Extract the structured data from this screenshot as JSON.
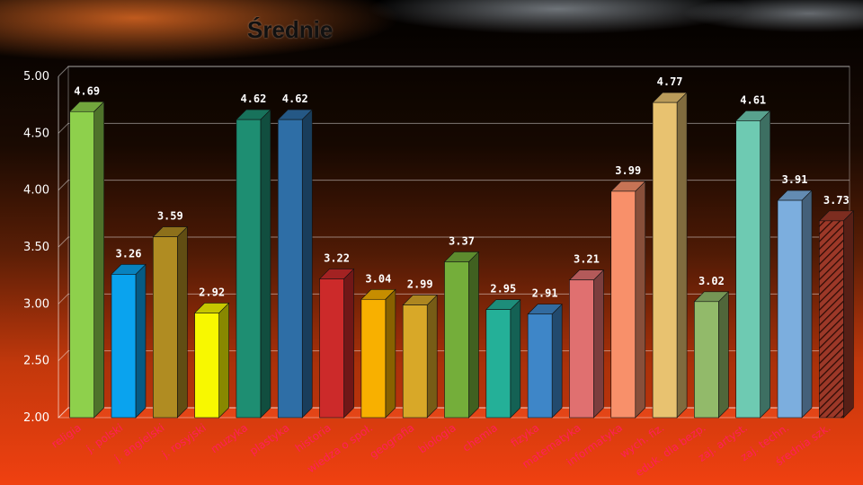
{
  "title": "Średnie",
  "chart_data": {
    "type": "bar",
    "title": "Średnie",
    "ylim": [
      2.0,
      5.0
    ],
    "yticks": [
      "2.00",
      "2.50",
      "3.00",
      "3.50",
      "4.00",
      "4.50",
      "5.00"
    ],
    "grid": true,
    "categories": [
      "religia",
      "j. polski",
      "j. angielski",
      "j. rosyjski",
      "muzyka",
      "plastyka",
      "historia",
      "wiedza o społ.",
      "geografia",
      "biologia",
      "chemia",
      "fizyka",
      "matematyka",
      "informatyka",
      "wych. fiz.",
      "eduk. dla bezp.",
      "zaj. artyst.",
      "zaj. techn.",
      "średnia szk."
    ],
    "values": [
      4.69,
      3.26,
      3.59,
      2.92,
      4.62,
      4.62,
      3.22,
      3.04,
      2.99,
      3.37,
      2.95,
      2.91,
      3.21,
      3.99,
      4.77,
      3.02,
      4.61,
      3.91,
      3.73
    ],
    "value_labels": [
      "4.69",
      "3.26",
      "3.59",
      "2.92",
      "4.62",
      "4.62",
      "3.22",
      "3.04",
      "2.99",
      "3.37",
      "2.95",
      "2.91",
      "3.21",
      "3.99",
      "4.77",
      "3.02",
      "4.61",
      "3.91",
      "3.73"
    ],
    "bar_colors": [
      "#8ed04c",
      "#0aa3ee",
      "#b08c22",
      "#f8f800",
      "#1e8e72",
      "#2e6ea6",
      "#cc2a2a",
      "#f8b000",
      "#d8a828",
      "#74ae3a",
      "#24b098",
      "#3e86c8",
      "#e07070",
      "#f8906a",
      "#e8c270",
      "#92ba6a",
      "#6ecab2",
      "#7caede",
      "#9c3828"
    ],
    "last_bar_hatched": true
  }
}
